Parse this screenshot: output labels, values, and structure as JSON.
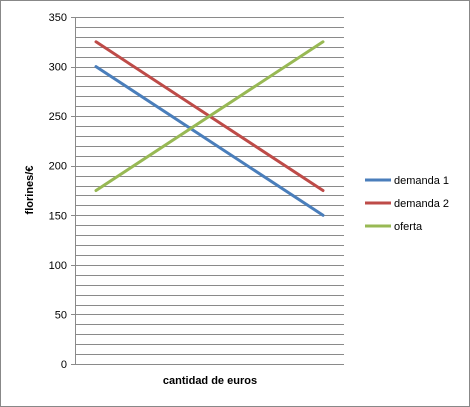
{
  "chart_data": {
    "type": "line",
    "title": "",
    "xlabel": "cantidad de euros",
    "ylabel": "florines/€",
    "x": [
      0,
      1
    ],
    "ylim": [
      0,
      350
    ],
    "yticks": [
      0,
      50,
      100,
      150,
      200,
      250,
      300,
      350
    ],
    "minor_grid_step": 10,
    "grid": true,
    "legend_position": "right",
    "series": [
      {
        "name": "demanda 1",
        "values": [
          300,
          150
        ],
        "color": "#4a7ebb"
      },
      {
        "name": "demanda 2",
        "values": [
          325,
          175
        ],
        "color": "#be4b48"
      },
      {
        "name": "oferta",
        "values": [
          175,
          325
        ],
        "color": "#98b954"
      }
    ]
  }
}
